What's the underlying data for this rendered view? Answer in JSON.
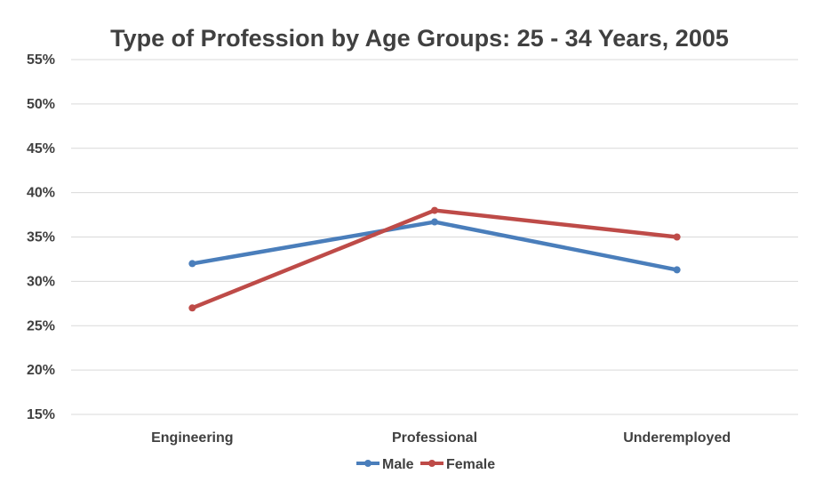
{
  "chart_data": {
    "type": "line",
    "title": "Type of Profession by Age Groups: 25 - 34 Years, 2005",
    "categories": [
      "Engineering",
      "Professional",
      "Underemployed"
    ],
    "y_tick_labels": [
      "15%",
      "20%",
      "25%",
      "30%",
      "35%",
      "40%",
      "45%",
      "50%",
      "55%"
    ],
    "ylim": [
      15,
      55
    ],
    "y_step": 5,
    "grid": true,
    "legend_position": "bottom",
    "series": [
      {
        "name": "Male",
        "color": "#4a7ebb",
        "values": [
          32.0,
          36.7,
          31.3
        ]
      },
      {
        "name": "Female",
        "color": "#be4b48",
        "values": [
          27.0,
          38.0,
          35.0
        ]
      }
    ]
  }
}
